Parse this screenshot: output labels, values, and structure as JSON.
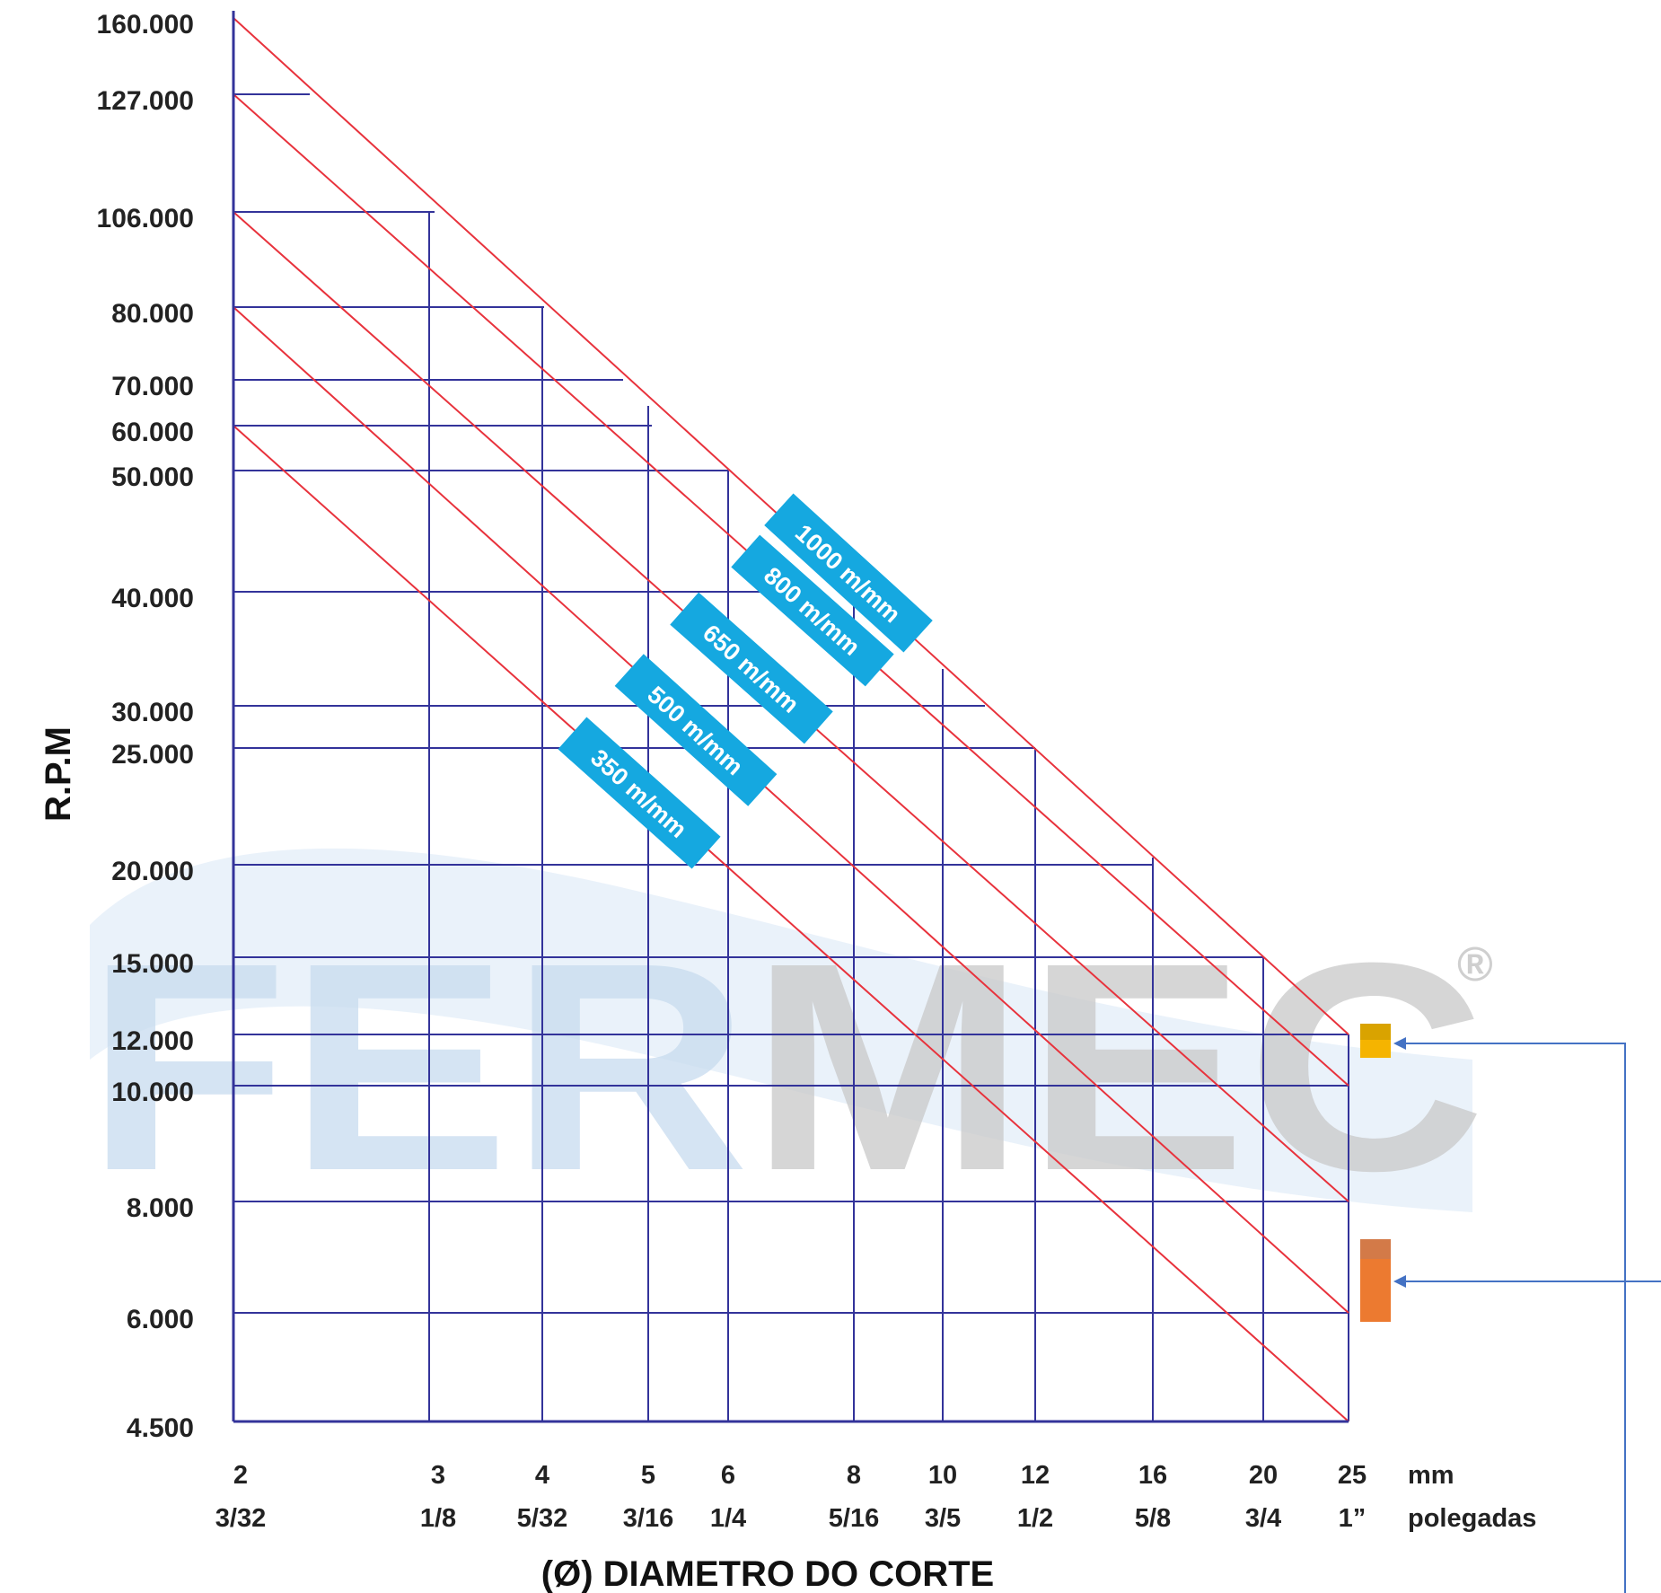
{
  "chart_data": {
    "type": "line",
    "title": "",
    "xlabel": "(Ø) DIAMETRO DO CORTE",
    "ylabel": "R.P.M",
    "x_unit_mm": "mm",
    "x_unit_in": "polegadas",
    "x_mm_ticks": [
      "2",
      "3",
      "4",
      "5",
      "6",
      "8",
      "10",
      "12",
      "16",
      "20",
      "25"
    ],
    "x_in_ticks": [
      "3/32",
      "1/8",
      "5/32",
      "3/16",
      "1/4",
      "5/16",
      "3/5",
      "1/2",
      "5/8",
      "3/4",
      "1”"
    ],
    "y_ticks": [
      "160.000",
      "127.000",
      "106.000",
      "80.000",
      "70.000",
      "60.000",
      "50.000",
      "40.000",
      "30.000",
      "25.000",
      "20.000",
      "15.000",
      "12.000",
      "10.000",
      "8.000",
      "6.000",
      "4.500"
    ],
    "xlim": [
      2,
      25
    ],
    "ylim": [
      4500,
      160000
    ],
    "series": [
      {
        "name": "1000 m/mm",
        "x": [
          2,
          25
        ],
        "y": [
          160000,
          12000
        ]
      },
      {
        "name": "800 m/mm",
        "x": [
          2,
          25
        ],
        "y": [
          127000,
          10000
        ]
      },
      {
        "name": "650 m/mm",
        "x": [
          2,
          25
        ],
        "y": [
          106000,
          8000
        ]
      },
      {
        "name": "500 m/mm",
        "x": [
          2,
          25
        ],
        "y": [
          80000,
          6000
        ]
      },
      {
        "name": "350 m/mm",
        "x": [
          2,
          25
        ],
        "y": [
          60000,
          4500
        ]
      }
    ],
    "grid": true,
    "legend": "inline labels along lines",
    "colors": {
      "grid": "#33339a",
      "series_line": "#e8323c",
      "label_bg": "#15a8e0",
      "marker_top": "#f5b400",
      "marker_bottom": "#ec7a30",
      "arrow": "#4472c4"
    },
    "markers": [
      {
        "name": "marker-12000",
        "y_range": [
          10800,
          12000
        ]
      },
      {
        "name": "marker-6000-7000",
        "y_range": [
          6000,
          7200
        ]
      }
    ]
  },
  "watermark": {
    "text_blue": "FER",
    "text_gray": "MEC",
    "registered": "®"
  }
}
